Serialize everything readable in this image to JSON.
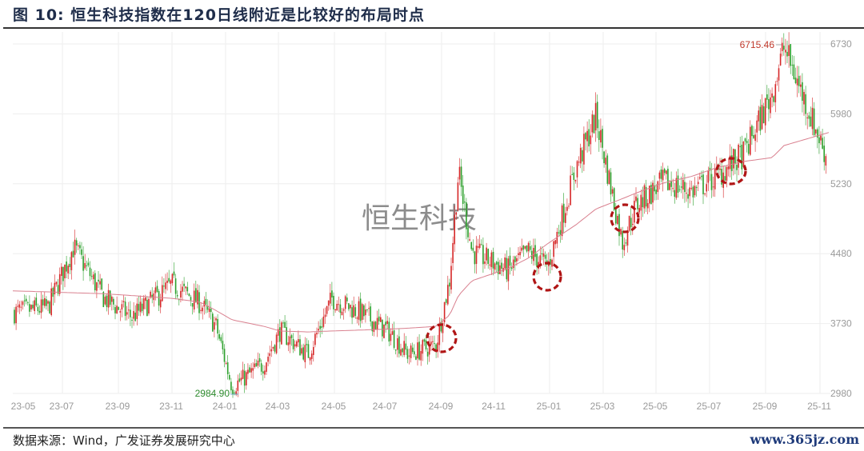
{
  "title": "图  10:  恒生科技指数在120日线附近是比较好的布局时点",
  "source": "数据来源：Wind，广发证券发展研究中心",
  "site_watermark": "www.365jz.com",
  "chart_watermark": "恒生科技",
  "colors": {
    "up": "#d62728",
    "down": "#2ca02c",
    "ma": "#d9808f",
    "circle": "#b01515",
    "grid": "#eeeeee",
    "high_label": "#c0392b",
    "low_label": "#2e8b2e"
  },
  "chart_data": {
    "type": "candlestick",
    "title": "恒生科技指数在120日线附近是比较好的布局时点",
    "xlabel": "",
    "ylabel": "",
    "ylim": [
      2980,
      6730
    ],
    "y_ticks": [
      6730,
      5980,
      5230,
      4480,
      3730,
      2980
    ],
    "x_ticks": [
      "23-05",
      "23-07",
      "23-09",
      "23-11",
      "24-01",
      "24-03",
      "24-05",
      "24-07",
      "24-09",
      "24-11",
      "25-01",
      "25-03",
      "25-05",
      "25-07",
      "25-09",
      "25-11"
    ],
    "grid": true,
    "annotations": [
      {
        "label": "6715.46",
        "type": "high",
        "date": "25-10"
      },
      {
        "label": "2984.90",
        "type": "low",
        "date": "24-01"
      }
    ],
    "highlight_circles": [
      "24-09",
      "25-01",
      "25-04",
      "25-08"
    ],
    "series": [
      {
        "name": "恒生科技指数 (close, approx.)",
        "x": [
          "23-05",
          "23-06",
          "23-07",
          "23-08",
          "23-09",
          "23-10",
          "23-11",
          "23-12",
          "24-01",
          "24-02",
          "24-03",
          "24-04",
          "24-05",
          "24-06",
          "24-07",
          "24-08",
          "24-09a",
          "24-09b",
          "24-10a",
          "24-10b",
          "24-11",
          "24-12",
          "25-01",
          "25-02",
          "25-03",
          "25-04a",
          "25-04b",
          "25-05",
          "25-06",
          "25-07",
          "25-08",
          "25-09",
          "25-10",
          "25-11"
        ],
        "values": [
          3850,
          3900,
          4550,
          4000,
          3800,
          4150,
          3950,
          3700,
          3050,
          3300,
          3650,
          3400,
          4000,
          3850,
          3650,
          3400,
          3500,
          4200,
          5350,
          4500,
          4300,
          4500,
          4350,
          5400,
          5950,
          4600,
          5000,
          5250,
          5150,
          5300,
          5550,
          6200,
          6700,
          5450
        ]
      },
      {
        "name": "MA120",
        "values": [
          4080,
          4070,
          4060,
          4050,
          4030,
          4000,
          3960,
          3870,
          3770,
          3700,
          3650,
          3640,
          3650,
          3660,
          3670,
          3680,
          3700,
          3820,
          4030,
          4190,
          4320,
          4430,
          4590,
          4790,
          4960,
          5070,
          5130,
          5240,
          5310,
          5400,
          5470,
          5510,
          5640,
          5780
        ]
      }
    ]
  }
}
